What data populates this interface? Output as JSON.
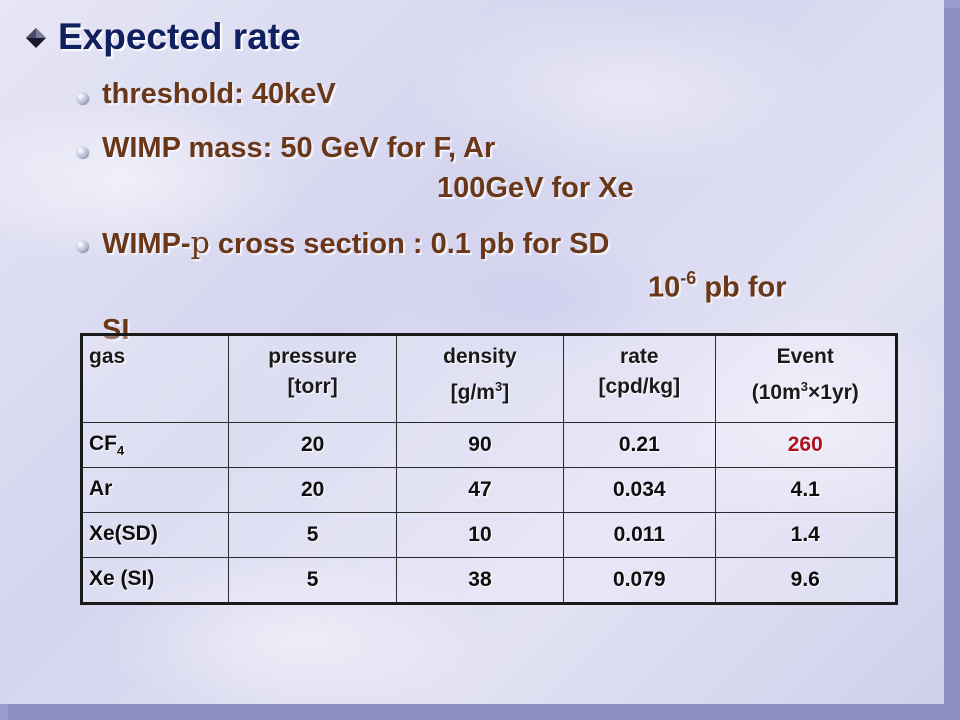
{
  "title": "Expected rate",
  "bullets": {
    "threshold": "threshold: 40keV",
    "mass_line1": "WIMP mass: 50 GeV for F, Ar",
    "mass_line2": "100GeV for Xe",
    "cross_prefix": "WIMP-",
    "cross_symbol": "p",
    "cross_rest": " cross section : 0.1 pb for SD",
    "si_base": "10",
    "si_exp": "-6",
    "si_rest": " pb for",
    "si_word": "SI"
  },
  "table": {
    "headers": {
      "gas": "gas",
      "pressure_1": "pressure",
      "pressure_2": "[torr]",
      "density_1": "density",
      "density_2a": "[g/m",
      "density_2b": "3",
      "density_2c": "]",
      "rate_1": "rate",
      "rate_2": "[cpd/kg]",
      "event_1": "Event",
      "event_2a": "(10m",
      "event_2b": "3",
      "event_2c": "×1yr)"
    },
    "rows": [
      {
        "gas_a": "CF",
        "gas_b": "4",
        "pressure": "20",
        "density": "90",
        "rate": "0.21",
        "event": "260"
      },
      {
        "gas_a": "Ar",
        "gas_b": "",
        "pressure": "20",
        "density": "47",
        "rate": "0.034",
        "event": "4.1"
      },
      {
        "gas_a": "Xe(SD)",
        "gas_b": "",
        "pressure": "5",
        "density": "10",
        "rate": "0.011",
        "event": "1.4"
      },
      {
        "gas_a": "Xe (SI)",
        "gas_b": "",
        "pressure": "5",
        "density": "38",
        "rate": "0.079",
        "event": "9.6"
      }
    ]
  },
  "colors": {
    "title": "#102060",
    "bullet_text": "#6a3818",
    "highlight": "#b01020",
    "background": "#d8d8f0"
  }
}
